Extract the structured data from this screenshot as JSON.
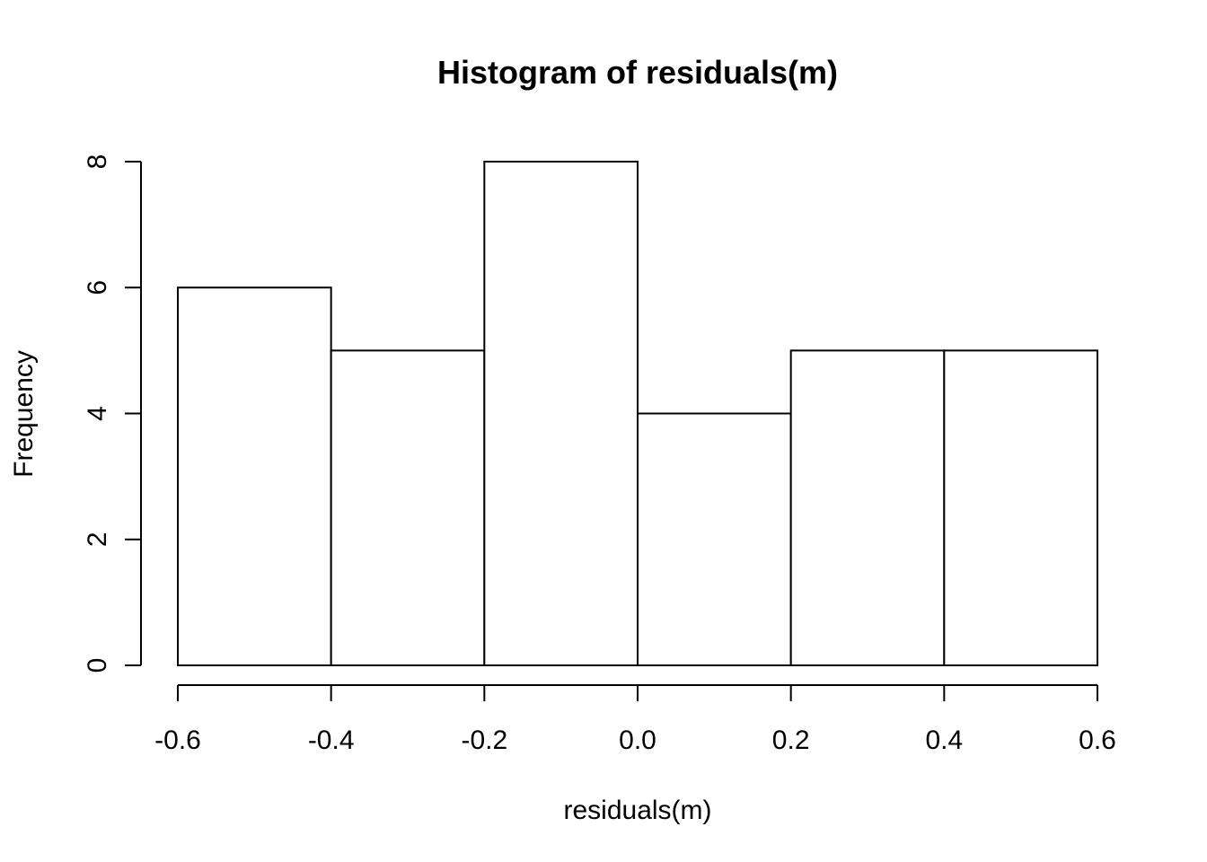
{
  "chart_data": {
    "type": "bar",
    "title": "Histogram of residuals(m)",
    "xlabel": "residuals(m)",
    "ylabel": "Frequency",
    "bins": [
      {
        "from": -0.6,
        "to": -0.4,
        "count": 6
      },
      {
        "from": -0.4,
        "to": -0.2,
        "count": 5
      },
      {
        "from": -0.2,
        "to": 0.0,
        "count": 8
      },
      {
        "from": 0.0,
        "to": 0.2,
        "count": 4
      },
      {
        "from": 0.2,
        "to": 0.4,
        "count": 5
      },
      {
        "from": 0.4,
        "to": 0.6,
        "count": 5
      }
    ],
    "xticks": [
      "-0.6",
      "-0.4",
      "-0.2",
      "0.0",
      "0.2",
      "0.4",
      "0.6"
    ],
    "yticks": [
      "0",
      "2",
      "4",
      "6",
      "8"
    ],
    "xlim": [
      -0.6,
      0.6
    ],
    "ylim": [
      0,
      8
    ],
    "grid": false,
    "bar_fill": "#ffffff",
    "bar_stroke": "#000000"
  }
}
